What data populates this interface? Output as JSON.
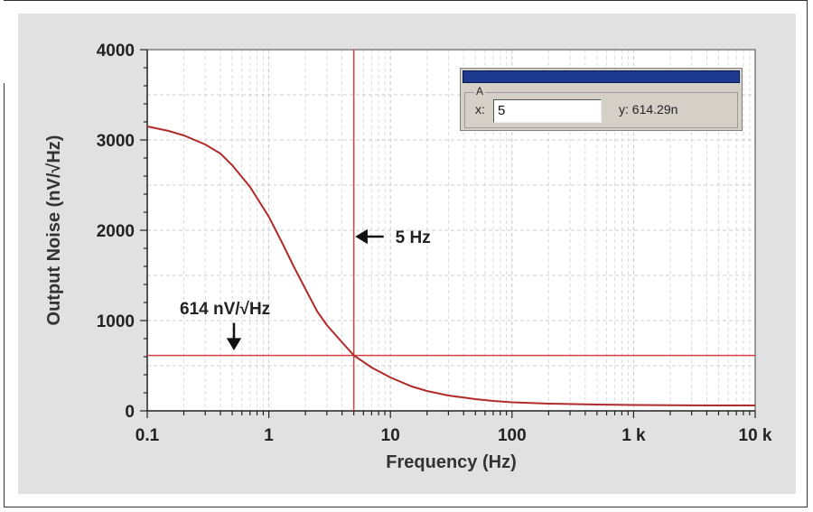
{
  "chart_data": {
    "type": "line",
    "xscale": "log",
    "xlim": [
      0.1,
      10000
    ],
    "ylim": [
      0,
      4000
    ],
    "xlabel": "Frequency (Hz)",
    "ylabel": "Output Noise (nV/√Hz)",
    "xtick_values": [
      0.1,
      1,
      10,
      100,
      1000,
      10000
    ],
    "xtick_labels": [
      "0.1",
      "1",
      "10",
      "100",
      "1 k",
      "10 k"
    ],
    "ytick_values": [
      0,
      1000,
      2000,
      3000,
      4000
    ],
    "ytick_labels": [
      "0",
      "1000",
      "2000",
      "3000",
      "4000"
    ],
    "grid": true,
    "series": [
      {
        "color": "#b22a2a",
        "x": [
          0.1,
          0.15,
          0.2,
          0.3,
          0.4,
          0.5,
          0.7,
          1,
          1.3,
          1.6,
          2,
          2.5,
          3,
          4,
          5,
          7,
          10,
          15,
          20,
          30,
          50,
          70,
          100,
          200,
          500,
          1000,
          2000,
          5000,
          10000
        ],
        "y": [
          3150,
          3100,
          3050,
          2950,
          2850,
          2720,
          2480,
          2150,
          1850,
          1600,
          1350,
          1100,
          950,
          760,
          614,
          480,
          370,
          270,
          220,
          170,
          130,
          110,
          95,
          80,
          70,
          65,
          62,
          60,
          60
        ]
      }
    ],
    "cursor": {
      "x": 5,
      "y": 614.29,
      "color": "#d94040"
    },
    "annotations": {
      "freq_label": "5 Hz",
      "noise_label": "614 nV/√Hz"
    }
  },
  "cursor_box": {
    "group_label": "A",
    "x_label": "x:",
    "x_value": "5",
    "y_readout": "y: 614.29n",
    "titlebar_color": "#1d3a8f"
  }
}
